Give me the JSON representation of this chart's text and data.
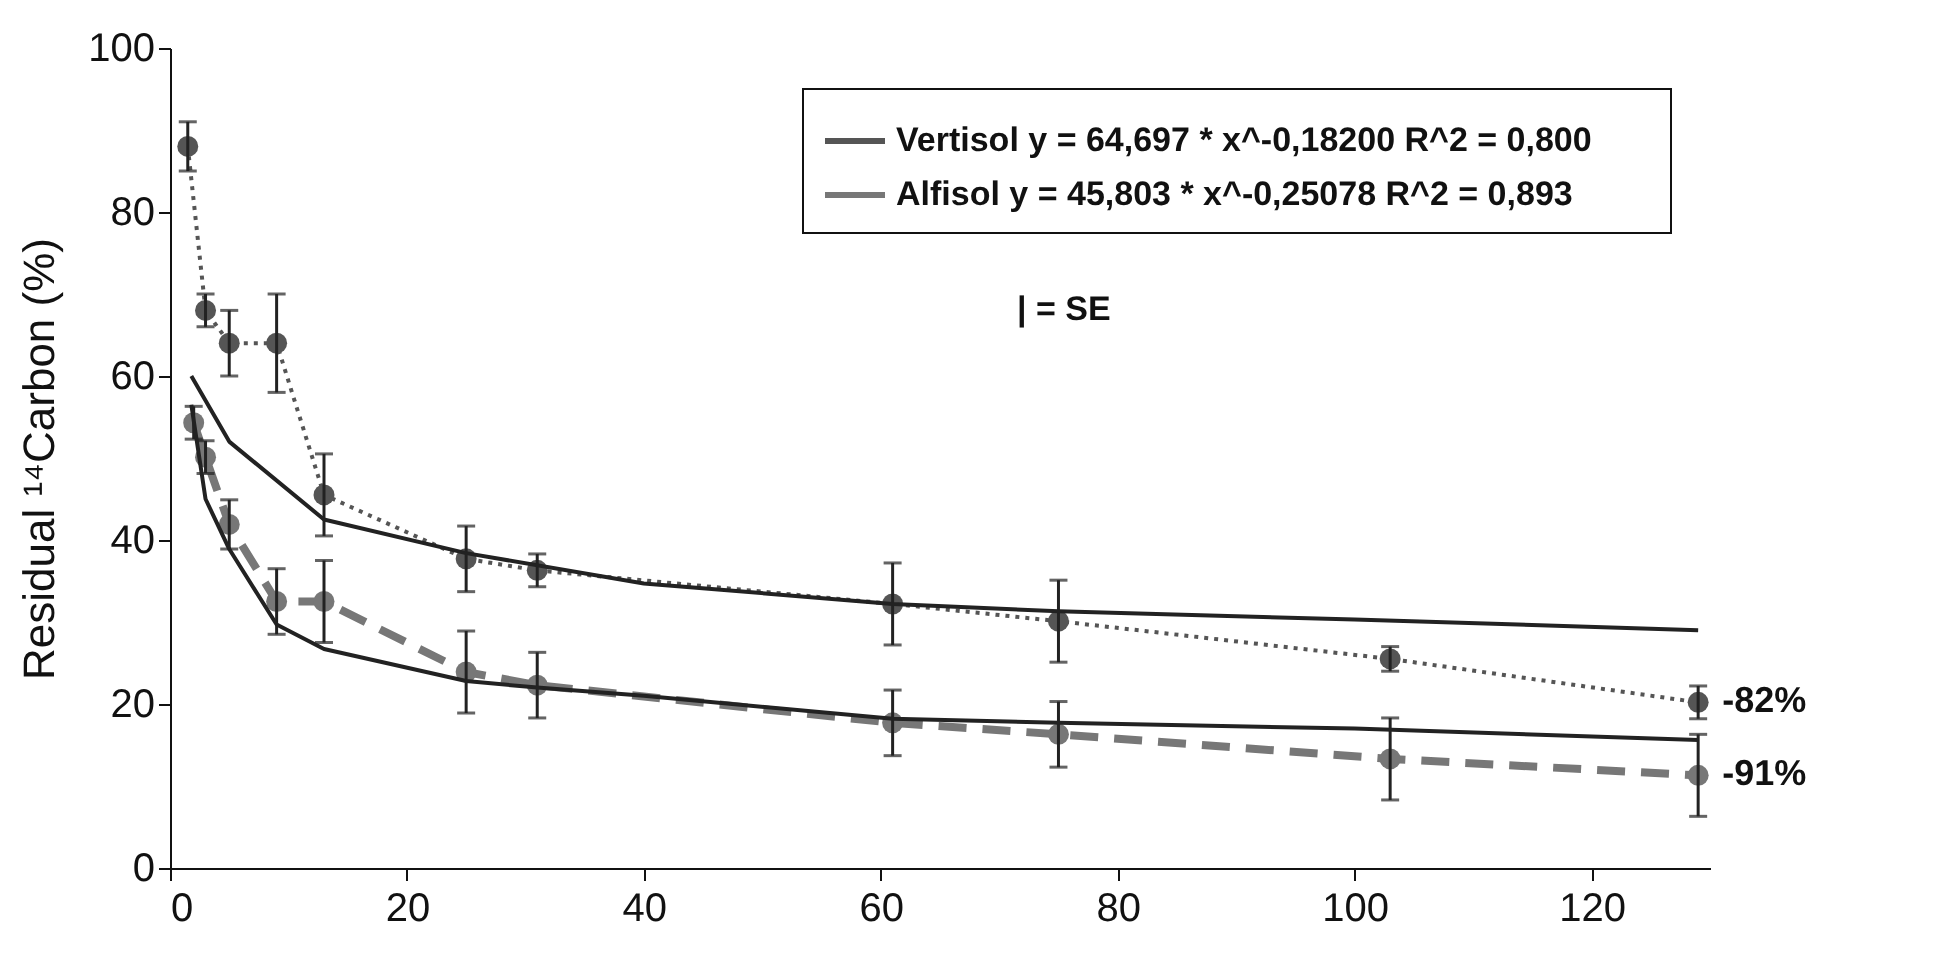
{
  "chart_data": {
    "type": "line",
    "ylabel": "Residual ¹⁴Carbon (%)",
    "xlim": [
      0,
      130
    ],
    "xticks": [
      0,
      20,
      40,
      60,
      80,
      100,
      120
    ],
    "ylim": [
      0,
      100
    ],
    "yticks": [
      0,
      20,
      40,
      60,
      80,
      100
    ],
    "grid": false,
    "legend": "top right",
    "series": [
      {
        "name": "Vertisol    y = 64,697 * x^-0,18200    R^2 = 0,800",
        "color": "#555555",
        "line_style": "dotted",
        "marker": "circle",
        "x": [
          1.5,
          3,
          5,
          9,
          13,
          25,
          31,
          61,
          75,
          103,
          129
        ],
        "values": [
          88,
          68,
          64,
          64,
          45.5,
          37.7,
          36.3,
          32.2,
          30.1,
          25.5,
          20.2
        ],
        "errors": [
          3,
          2,
          4,
          6,
          5,
          4,
          2,
          5,
          5,
          1.5,
          2
        ]
      },
      {
        "name": "Alfisol    y = 45,803 * x^-0,25078    R^2 = 0,893",
        "color": "#777777",
        "line_style": "dashed",
        "marker": "circle",
        "x": [
          2,
          3,
          5,
          9,
          13,
          25,
          31,
          61,
          75,
          103,
          129
        ],
        "values": [
          54.3,
          50.1,
          41.9,
          32.5,
          32.5,
          23.9,
          22.3,
          17.7,
          16.3,
          13.3,
          11.3
        ],
        "errors": [
          2,
          2,
          3,
          4,
          5,
          5,
          4,
          4,
          4,
          5,
          5
        ]
      },
      {
        "type": "line",
        "color": "#222222",
        "line_style": "solid",
        "marker": "none",
        "x": [
          1.8,
          5,
          13,
          25,
          40,
          61,
          75,
          100,
          129
        ],
        "values": [
          60,
          52,
          42.5,
          38.4,
          34.7,
          32.2,
          31.3,
          30.3,
          29
        ]
      },
      {
        "type": "line",
        "color": "#222222",
        "line_style": "solid",
        "marker": "none",
        "x": [
          1.8,
          3,
          5,
          9,
          13,
          25,
          31,
          40,
          61,
          75,
          100,
          129
        ],
        "values": [
          56.5,
          45,
          38.9,
          29.7,
          26.7,
          22.8,
          22,
          21,
          18.2,
          17.7,
          17,
          15.6
        ]
      }
    ],
    "annotations": [
      "| = SE",
      {
        "text": "-82%",
        "x": 129,
        "y": 20.2
      },
      {
        "text": "-91%",
        "x": 129,
        "y": 11.3
      }
    ]
  }
}
